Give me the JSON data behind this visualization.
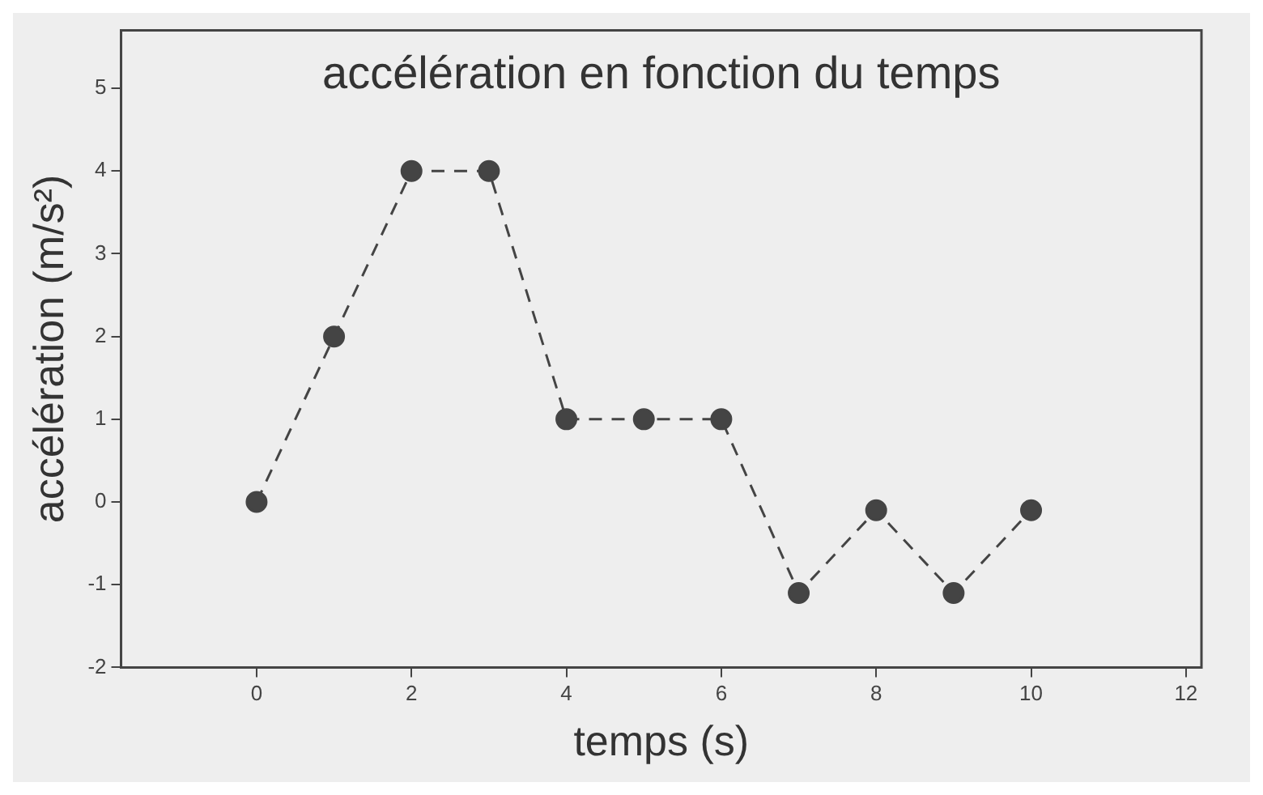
{
  "chart_data": {
    "type": "line",
    "title": "accélération en fonction du temps",
    "xlabel": "temps (s)",
    "ylabel": "accélération (m/s²)",
    "x": [
      0,
      1,
      2,
      3,
      4,
      5,
      6,
      7,
      8,
      9,
      10
    ],
    "series": [
      {
        "color": "#444444",
        "values": [
          0,
          2,
          4,
          4,
          1,
          1,
          1,
          -1.1,
          -0.1,
          -1.1,
          -0.1
        ]
      }
    ],
    "xlim": [
      -1.75,
      12.2
    ],
    "xticks": [
      0,
      2,
      4,
      6,
      8,
      10,
      12
    ],
    "ylim": [
      -2,
      5.7
    ],
    "yticks": [
      -2,
      -1,
      0,
      1,
      2,
      3,
      4,
      5
    ],
    "grid": false,
    "legend": false,
    "marker": "circle",
    "line_style": "dashed"
  }
}
